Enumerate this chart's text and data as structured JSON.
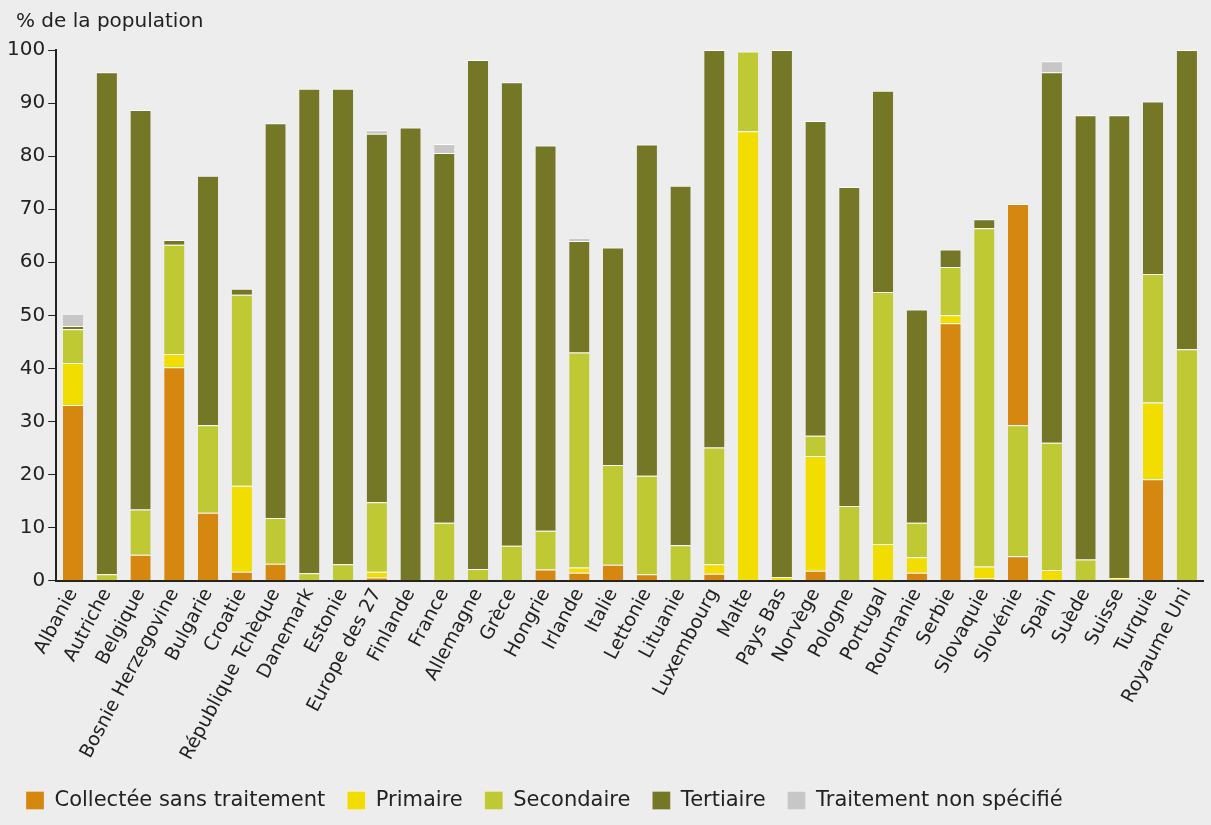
{
  "chart_data": {
    "type": "bar",
    "ylabel": "% de la population",
    "stacked": true,
    "grid": false,
    "legend": "bottom left",
    "categories": [
      "Albanie",
      "Autriche",
      "Belgique",
      "Bosnie Herzegovine",
      "Bulgarie",
      "Croatie",
      "République Tchèque",
      "Danemark",
      "Estonie",
      "Europe des 27",
      "Finlande",
      "France",
      "Allemagne",
      "Grèce",
      "Hongrie",
      "Irlande",
      "Italie",
      "Lettonie",
      "Lituanie",
      "Luxembourg",
      "Malte",
      "Pays Bas",
      "Norvège",
      "Pologne",
      "Portugal",
      "Roumanie",
      "Serbie",
      "Slovaquie",
      "Slovénie",
      "Spain",
      "Suède",
      "Suisse",
      "Turquie",
      "Royaume Uni"
    ],
    "ylim": [
      0,
      100
    ],
    "yticks": [
      0,
      10,
      20,
      30,
      40,
      50,
      60,
      70,
      80,
      90,
      100
    ],
    "series": [
      {
        "name": "Collectée sans traitement",
        "color": "#d6870f",
        "values": [
          33.1,
          null,
          4.9,
          40.2,
          12.8,
          1.7,
          3.2,
          null,
          null,
          0.6,
          null,
          null,
          null,
          null,
          2.1,
          1.5,
          3.0,
          1.2,
          null,
          1.3,
          null,
          null,
          1.9,
          null,
          null,
          1.5,
          48.5,
          0.5,
          4.6,
          null,
          null,
          null,
          19.1,
          null
        ]
      },
      {
        "name": "Primaire",
        "color": "#f2dd00",
        "values": [
          7.9,
          null,
          null,
          2.5,
          null,
          16.2,
          null,
          null,
          null,
          1.1,
          null,
          null,
          null,
          null,
          null,
          1.0,
          null,
          null,
          null,
          1.8,
          84.7,
          0.7,
          21.6,
          null,
          6.9,
          2.9,
          1.5,
          2.2,
          null,
          2.0,
          null,
          0.5,
          14.5,
          null
        ]
      },
      {
        "name": "Secondaire",
        "color": "#bfc934",
        "values": [
          6.4,
          1.2,
          8.5,
          20.6,
          16.5,
          36.0,
          8.6,
          1.4,
          3.1,
          13.1,
          null,
          10.9,
          2.2,
          6.6,
          7.3,
          40.5,
          18.8,
          18.6,
          6.7,
          22.0,
          15.0,
          null,
          3.8,
          14.1,
          47.5,
          6.5,
          9.1,
          63.7,
          24.7,
          24.0,
          4.0,
          null,
          24.2,
          43.6
        ]
      },
      {
        "name": "Tertiaire",
        "color": "#737726",
        "values": [
          0.6,
          94.6,
          75.3,
          0.9,
          47.0,
          1.1,
          74.4,
          91.3,
          89.6,
          69.4,
          85.4,
          69.7,
          95.9,
          87.3,
          72.6,
          21.0,
          41.0,
          62.4,
          67.7,
          74.9,
          null,
          99.3,
          59.3,
          60.1,
          37.9,
          40.2,
          3.3,
          1.7,
          null,
          69.8,
          83.7,
          87.2,
          32.5,
          56.4
        ]
      },
      {
        "name": "Traitement non spécifié",
        "color": "#c8c7c5",
        "values": [
          2.3,
          null,
          null,
          null,
          null,
          null,
          null,
          null,
          null,
          0.7,
          null,
          1.7,
          null,
          null,
          null,
          0.6,
          null,
          null,
          null,
          null,
          null,
          null,
          null,
          null,
          null,
          null,
          null,
          null,
          null,
          2.1,
          null,
          null,
          null,
          null
        ]
      },
      {
        "color": "#d6870f",
        "values": [
          null,
          null,
          null,
          null,
          null,
          null,
          null,
          null,
          null,
          null,
          null,
          null,
          null,
          null,
          null,
          null,
          null,
          null,
          null,
          null,
          null,
          null,
          null,
          null,
          null,
          null,
          null,
          null,
          41.7,
          null,
          null,
          null,
          null,
          null
        ]
      }
    ]
  }
}
